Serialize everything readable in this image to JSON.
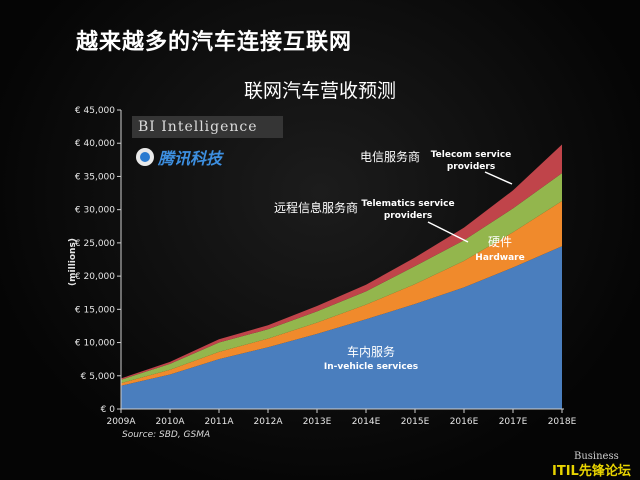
{
  "slide_title": "越来越多的汽车连接互联网",
  "brand": "BI Intelligence",
  "partner_logo": "腾讯科技",
  "source": "Source: SBD, GSMA",
  "watermark_top": "Business",
  "watermark": "ITIL先锋论坛",
  "colors": {
    "in_vehicle": "#4a7ebe",
    "hardware": "#f08a2c",
    "telematics": "#93b64d",
    "telecom": "#c0444a",
    "axis_text": "#e6e6e6",
    "grid": "#555555"
  },
  "chart_data": {
    "type": "area",
    "stacked": true,
    "title": "联网汽车营收预测",
    "ylabel": "(millions)",
    "xlabel": "",
    "ylim": [
      0,
      45000
    ],
    "yticks": [
      "€ 0",
      "€ 5,000",
      "€ 10,000",
      "€ 15,000",
      "€ 20,000",
      "€ 25,000",
      "€ 30,000",
      "€ 35,000",
      "€ 40,000",
      "€ 45,000"
    ],
    "categories": [
      "2009A",
      "2010A",
      "2011A",
      "2012A",
      "2013E",
      "2014E",
      "2015E",
      "2016E",
      "2017E",
      "2018E"
    ],
    "grid": false,
    "series": [
      {
        "key": "in_vehicle",
        "values": [
          3500,
          5200,
          7500,
          9300,
          11300,
          13500,
          15800,
          18300,
          21300,
          24500
        ]
      },
      {
        "key": "hardware",
        "values": [
          400,
          700,
          1100,
          1300,
          1700,
          2200,
          3000,
          4000,
          5300,
          6800
        ]
      },
      {
        "key": "telematics",
        "values": [
          500,
          900,
          1400,
          1400,
          1700,
          2000,
          2700,
          3100,
          3600,
          4200
        ]
      },
      {
        "key": "telecom",
        "values": [
          200,
          300,
          500,
          600,
          800,
          1000,
          1300,
          1900,
          2700,
          4300
        ]
      }
    ],
    "annotations": [
      {
        "id": "telecom_cn",
        "text": "电信服务商"
      },
      {
        "id": "telecom_en1",
        "text": "Telecom service"
      },
      {
        "id": "telecom_en2",
        "text": "providers"
      },
      {
        "id": "telematics_cn",
        "text": "远程信息服务商"
      },
      {
        "id": "telematics_en1",
        "text": "Telematics service"
      },
      {
        "id": "telematics_en2",
        "text": "providers"
      },
      {
        "id": "hardware_cn",
        "text": "硬件"
      },
      {
        "id": "hardware_en",
        "text": "Hardware"
      },
      {
        "id": "invehicle_cn",
        "text": "车内服务"
      },
      {
        "id": "invehicle_en",
        "text": "In-vehicle services"
      }
    ]
  }
}
